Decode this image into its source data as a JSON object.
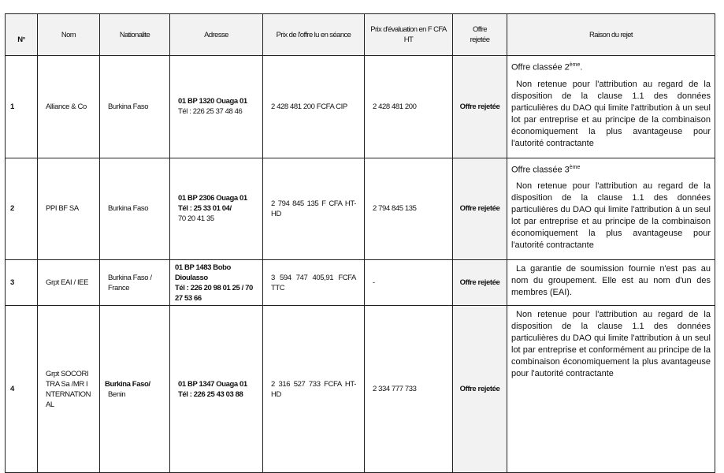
{
  "headers": [
    "N°",
    "Nom",
    "Nationalite",
    "Adresse",
    "Prix de l'offre lu en séance",
    "Prix d'évaluation en F CFA HT",
    "Offre rejetée",
    "Raison du rejet"
  ],
  "rows": [
    {
      "n": "1",
      "nom": "Alliance & Co",
      "nat": [
        "Burkina Faso"
      ],
      "adr_bold": [
        "01 BP 1320 Ouaga 01"
      ],
      "adr_normal": [
        "Tél : 226 25 37 48 46"
      ],
      "prix_lu": "2 428 481 200 FCFA CIP",
      "prix_eval": "2 428 481 200",
      "rejet": "Offre rejetée",
      "raison_head": "Offre classée 2",
      "raison_sup": "ème",
      "raison_tail": ".",
      "raison": "Non retenue pour l'attribution au regard de la disposition de la clause 1.1 des données particulières du DAO qui limite l'attribution à un seul lot par entreprise et au principe de la combinaison économiquement la plus avantageuse pour l'autorité contractante"
    },
    {
      "n": "2",
      "nom": "PPI BF SA",
      "nat": [
        "Burkina Faso"
      ],
      "adr_bold": [
        "01 BP 2306 Ouaga 01",
        "Tél : 25 33 01 04/"
      ],
      "adr_normal": [
        "70 20 41 35"
      ],
      "prix_lu": "2 794 845 135 F CFA HT-HD",
      "prix_eval": "2 794 845 135",
      "rejet": "Offre rejetée",
      "raison_head": "Offre classée 3",
      "raison_sup": "ème",
      "raison_tail": "",
      "raison": "Non retenue pour l'attribution au regard de la disposition de la clause 1.1 des données particulières du DAO qui limite l'attribution à un seul lot par entreprise et au principe de la combinaison économiquement la plus avantageuse pour l'autorité contractante"
    },
    {
      "n": "3",
      "nom": "Grpt EAI / IEE",
      "nat": [
        "Burkina Faso /",
        "France"
      ],
      "adr_bold": [
        "01 BP 1483 Bobo Dioulasso",
        "Tél : 226 20 98 01 25 / 70 27 53 66"
      ],
      "adr_normal": [],
      "prix_lu": "3 594 747 405,91 FCFA TTC",
      "prix_eval": "-",
      "rejet": "Offre rejetée",
      "raison": "La garantie de soumission fournie n'est pas au nom du groupement. Elle est au nom d'un des membres (EAI)."
    },
    {
      "n": "4",
      "nom": "Grpt SOCORITRA Sa /MR INTERNATIONAL",
      "nat_bold": "Burkina Faso/",
      "nat": [
        "Benin"
      ],
      "adr_bold": [
        "01 BP 1347 Ouaga 01",
        "Tél : 226 25 43 03 88"
      ],
      "adr_normal": [],
      "prix_lu": "2 316 527 733 FCFA HT-HD",
      "prix_eval": "2 334 777 733",
      "rejet": "Offre rejetée",
      "raison": "Non retenue pour l'attribution au regard de la disposition de la clause 1.1 des données particulières du DAO qui limite l'attribution à un seul lot par entreprise et conformément au principe de la combinaison économiquement la plus avantageuse pour l'autorité contractante"
    }
  ]
}
